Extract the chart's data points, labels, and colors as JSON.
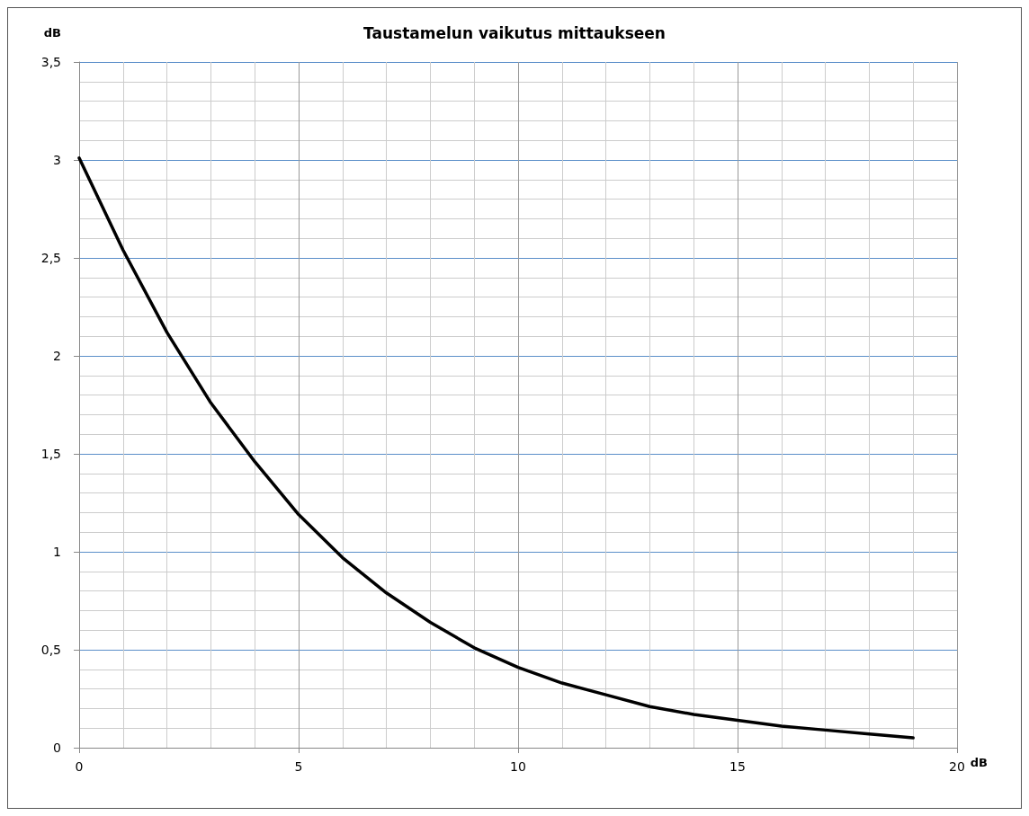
{
  "chart_data": {
    "type": "line",
    "title": "Taustamelun vaikutus mittaukseen",
    "xlabel": "dB",
    "ylabel": "dB",
    "x": [
      0,
      1,
      2,
      3,
      4,
      5,
      6,
      7,
      8,
      9,
      10,
      11,
      12,
      13,
      14,
      15,
      16,
      17,
      18,
      19
    ],
    "series": [
      {
        "color": "#000000",
        "values": [
          3.01,
          2.54,
          2.12,
          1.76,
          1.46,
          1.19,
          0.97,
          0.79,
          0.64,
          0.51,
          0.41,
          0.33,
          0.27,
          0.21,
          0.17,
          0.14,
          0.11,
          0.09,
          0.07,
          0.05
        ]
      }
    ],
    "xlim": [
      0,
      20
    ],
    "xticks": [
      0,
      5,
      10,
      15,
      20
    ],
    "ylim": [
      0,
      3.5
    ],
    "yticks": [
      0,
      {
        "value": 0.5,
        "label": "0,5"
      },
      1,
      {
        "value": 1.5,
        "label": "1,5"
      },
      2,
      {
        "value": 2.5,
        "label": "2,5"
      },
      3,
      {
        "value": 3.5,
        "label": "3,5"
      }
    ],
    "grid": true,
    "marker": "none",
    "line_style": "solid"
  }
}
